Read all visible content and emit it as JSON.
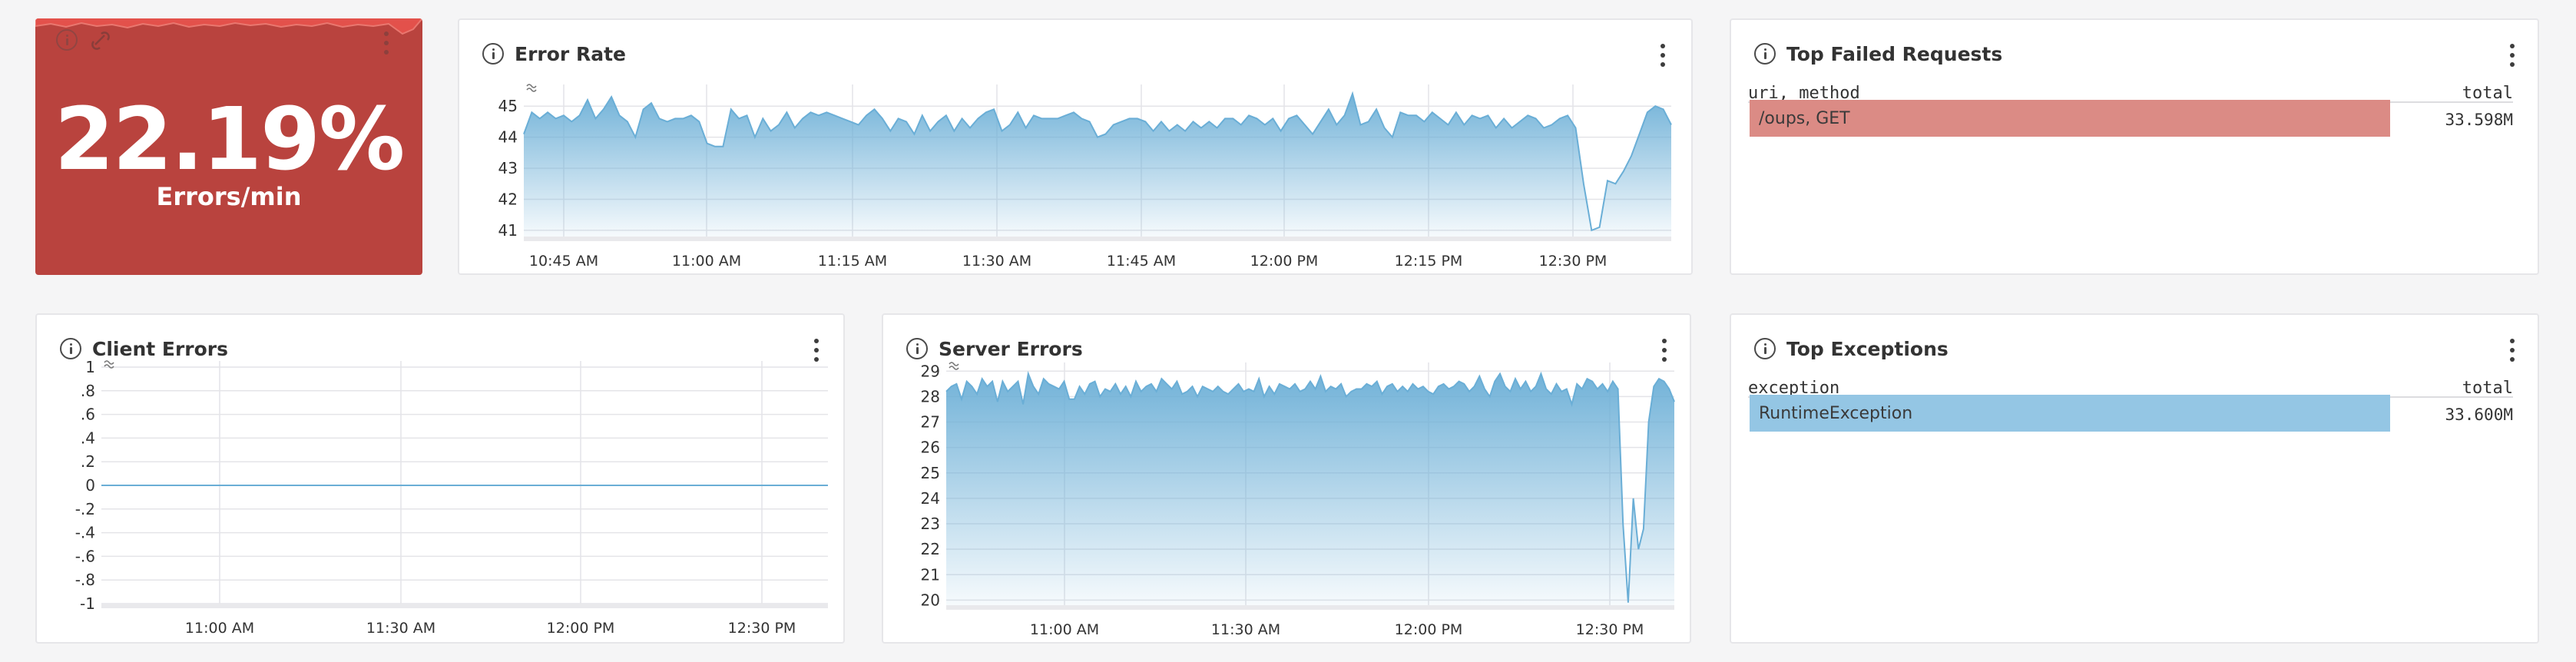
{
  "stat_panel": {
    "value": "22.19%",
    "label": "Errors/min",
    "bg_color": "#b9433e"
  },
  "error_rate": {
    "title": "Error Rate",
    "chart_data": {
      "type": "area",
      "y_ticks": [
        "45",
        "44",
        "43",
        "42",
        "41"
      ],
      "ylim": [
        40.8,
        45.5
      ],
      "x_ticks": [
        "10:45 AM",
        "11:00 AM",
        "11:15 AM",
        "11:30 AM",
        "11:45 AM",
        "12:00 PM",
        "12:15 PM",
        "12:30 PM"
      ],
      "xlim_minutes": [
        0,
        120
      ],
      "values": [
        44.1,
        44.8,
        44.6,
        44.8,
        44.6,
        44.7,
        44.5,
        44.7,
        45.2,
        44.6,
        44.9,
        45.3,
        44.7,
        44.5,
        44.0,
        44.9,
        45.1,
        44.6,
        44.5,
        44.6,
        44.6,
        44.7,
        44.5,
        43.8,
        43.7,
        43.7,
        44.9,
        44.6,
        44.7,
        44.0,
        44.6,
        44.2,
        44.4,
        44.8,
        44.3,
        44.6,
        44.8,
        44.7,
        44.8,
        44.7,
        44.6,
        44.5,
        44.4,
        44.7,
        44.9,
        44.6,
        44.2,
        44.6,
        44.5,
        44.1,
        44.7,
        44.2,
        44.5,
        44.7,
        44.2,
        44.6,
        44.3,
        44.6,
        44.8,
        44.9,
        44.2,
        44.4,
        44.8,
        44.3,
        44.7,
        44.6,
        44.6,
        44.6,
        44.7,
        44.8,
        44.6,
        44.5,
        44.0,
        44.1,
        44.4,
        44.5,
        44.6,
        44.6,
        44.5,
        44.2,
        44.5,
        44.2,
        44.4,
        44.2,
        44.5,
        44.3,
        44.5,
        44.3,
        44.6,
        44.6,
        44.4,
        44.7,
        44.6,
        44.4,
        44.6,
        44.2,
        44.6,
        44.7,
        44.4,
        44.1,
        44.5,
        44.9,
        44.4,
        44.7,
        45.4,
        44.4,
        44.5,
        44.9,
        44.3,
        44.0,
        44.8,
        44.7,
        44.7,
        44.5,
        44.8,
        44.6,
        44.4,
        44.8,
        44.4,
        44.7,
        44.6,
        44.7,
        44.3,
        44.6,
        44.3,
        44.5,
        44.7,
        44.6,
        44.3,
        44.4,
        44.6,
        44.7,
        44.3,
        42.5,
        41.0,
        41.1,
        42.6,
        42.5,
        42.9,
        43.4,
        44.1,
        44.8,
        45.0,
        44.9,
        44.4
      ],
      "line_color": "#6aaed6"
    }
  },
  "top_failed": {
    "title": "Top Failed Requests",
    "col1": "uri, method",
    "col2": "total",
    "rows": [
      {
        "label": "/oups, GET",
        "value": "33.598M",
        "color": "#db8b85"
      }
    ]
  },
  "client_errors": {
    "title": "Client Errors",
    "chart_data": {
      "type": "line",
      "y_ticks": [
        "1",
        ".8",
        ".6",
        ".4",
        ".2",
        "0",
        "-.2",
        "-.4",
        "-.6",
        "-.8",
        "-1"
      ],
      "ylim": [
        -1,
        1
      ],
      "x_ticks": [
        "11:00 AM",
        "11:30 AM",
        "12:00 PM",
        "12:30 PM"
      ],
      "values_constant": 0,
      "line_color": "#6aaed6"
    }
  },
  "server_errors": {
    "title": "Server Errors",
    "chart_data": {
      "type": "area",
      "y_ticks": [
        "29",
        "28",
        "27",
        "26",
        "25",
        "24",
        "23",
        "22",
        "21",
        "20"
      ],
      "ylim": [
        19.8,
        29.1
      ],
      "x_ticks": [
        "11:00 AM",
        "11:30 AM",
        "12:00 PM",
        "12:30 PM"
      ],
      "values": [
        28.2,
        28.4,
        28.5,
        27.9,
        28.6,
        28.4,
        28.1,
        28.7,
        28.4,
        28.6,
        27.8,
        28.6,
        28.2,
        28.4,
        28.6,
        27.7,
        28.9,
        28.4,
        28.1,
        28.7,
        28.5,
        28.4,
        28.3,
        28.6,
        27.9,
        27.9,
        28.4,
        28.1,
        28.5,
        28.6,
        28.0,
        28.3,
        28.2,
        28.5,
        28.1,
        28.4,
        28.0,
        28.6,
        28.2,
        28.4,
        28.5,
        28.2,
        28.7,
        28.5,
        28.3,
        28.6,
        28.1,
        28.2,
        28.4,
        28.0,
        28.4,
        28.3,
        28.2,
        28.4,
        28.2,
        28.1,
        28.3,
        28.5,
        28.2,
        28.3,
        28.2,
        28.7,
        28.0,
        28.4,
        28.1,
        28.5,
        28.4,
        28.3,
        28.5,
        28.2,
        28.3,
        28.6,
        28.3,
        28.8,
        28.2,
        28.4,
        28.3,
        28.5,
        28.0,
        28.2,
        28.3,
        28.3,
        28.5,
        28.4,
        28.6,
        28.1,
        28.4,
        28.5,
        28.2,
        28.4,
        28.2,
        28.5,
        28.3,
        28.4,
        28.2,
        28.1,
        28.4,
        28.5,
        28.3,
        28.4,
        28.6,
        28.5,
        28.2,
        28.4,
        28.8,
        28.3,
        28.0,
        28.6,
        28.9,
        28.4,
        28.2,
        28.7,
        28.3,
        28.6,
        28.2,
        28.4,
        28.9,
        28.3,
        28.1,
        28.5,
        28.2,
        28.3,
        27.7,
        28.5,
        28.3,
        28.7,
        28.6,
        28.3,
        28.5,
        28.2,
        28.6,
        28.3,
        23.0,
        19.9,
        24.0,
        22.0,
        22.8,
        27.0,
        28.4,
        28.7,
        28.6,
        28.3,
        27.8
      ],
      "line_color": "#6aaed6"
    }
  },
  "top_exceptions": {
    "title": "Top Exceptions",
    "col1": "exception",
    "col2": "total",
    "rows": [
      {
        "label": "RuntimeException",
        "value": "33.600M",
        "color": "#94c6e4"
      }
    ]
  }
}
